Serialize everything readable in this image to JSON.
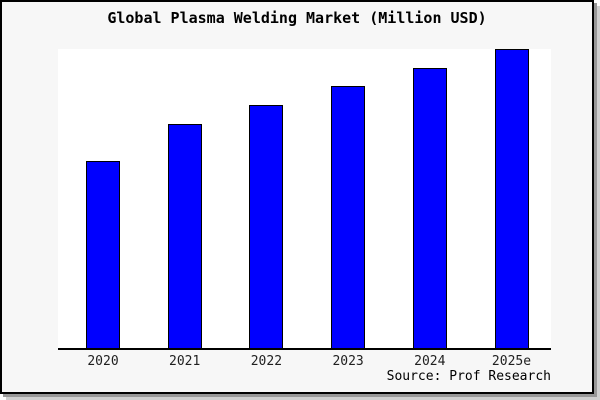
{
  "title": "Global Plasma Welding Market (Million USD)",
  "source_note": "Source: Prof Research",
  "colors": {
    "bar_fill": "#0000ff",
    "bar_edge": "#000000",
    "figure_background": "#f7f7f7",
    "plot_background": "#ffffff",
    "frame_border": "#000000",
    "shadow": "#979797",
    "text": "#000000"
  },
  "chart_data": {
    "type": "bar",
    "title": "Global Plasma Welding Market (Million USD)",
    "categories": [
      "2020",
      "2021",
      "2022",
      "2023",
      "2024",
      "2025e"
    ],
    "values": [
      250,
      300,
      325,
      350,
      375,
      400
    ],
    "value_scale": "relative units; no y-axis or value labels are shown in the image",
    "ylim": [
      0,
      400
    ],
    "xlabel": "",
    "ylabel": "",
    "grid": false,
    "legend": false,
    "annotations": [
      "Source: Prof Research"
    ]
  }
}
